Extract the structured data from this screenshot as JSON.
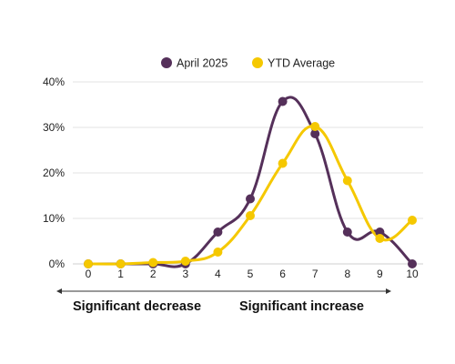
{
  "chart_data": {
    "type": "line",
    "x": [
      0,
      1,
      2,
      3,
      4,
      5,
      6,
      7,
      8,
      9,
      10
    ],
    "xlim": [
      0,
      10
    ],
    "ylim": [
      0,
      40
    ],
    "y_ticks": [
      "0%",
      "10%",
      "20%",
      "30%",
      "40%"
    ],
    "y_tick_values": [
      0,
      10,
      20,
      30,
      40
    ],
    "grid": "horizontal",
    "legend_position": "top-center",
    "series": [
      {
        "name": "April 2025",
        "color": "#55305A",
        "values": [
          0,
          0,
          0,
          0,
          7,
          14.3,
          35.7,
          28.6,
          7,
          7,
          0
        ]
      },
      {
        "name": "YTD Average",
        "color": "#F5C800",
        "values": [
          0,
          0,
          0.3,
          0.6,
          2.6,
          10.6,
          22.1,
          30.2,
          18.3,
          5.6,
          9.6
        ]
      }
    ],
    "annotations": {
      "left_label": "Significant decrease",
      "right_label": "Significant increase"
    }
  }
}
